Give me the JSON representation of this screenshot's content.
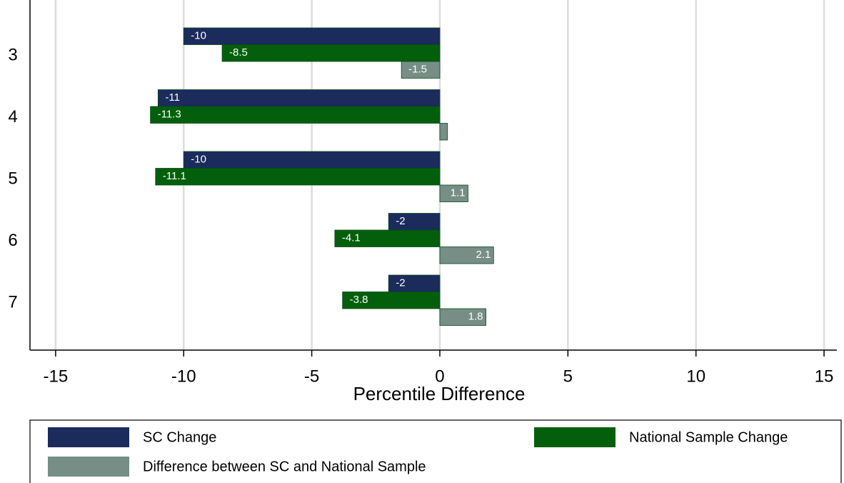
{
  "chart_data": {
    "type": "hbar",
    "categories": [
      "3",
      "4",
      "5",
      "6",
      "7"
    ],
    "series": [
      {
        "name": "SC Change",
        "color": "#1b2b5c",
        "values": [
          -10,
          -11,
          -10,
          -2,
          -2
        ]
      },
      {
        "name": "National Sample Change",
        "color": "#035f0c",
        "values": [
          -8.5,
          -11.3,
          -11.1,
          -4.1,
          -3.8
        ]
      },
      {
        "name": "Difference between SC and National Sample",
        "color": "#768e86",
        "values": [
          -1.5,
          0.3,
          1.1,
          2.1,
          1.8
        ],
        "value_labels": [
          "-1.5",
          null,
          "1.1",
          "2.1",
          "1.8"
        ]
      }
    ],
    "x_label": "Percentile Difference",
    "xlim": [
      -16,
      15.5
    ],
    "xticks": [
      -15,
      -10,
      -5,
      0,
      5,
      10,
      15
    ],
    "grid": true,
    "legend": "bottom"
  }
}
